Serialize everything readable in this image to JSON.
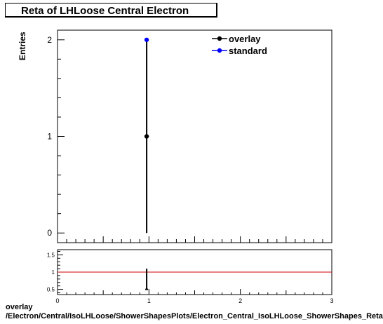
{
  "chart_data": [
    {
      "type": "scatter",
      "title": "Reta of LHLoose Central  Electron",
      "ylabel": "Entries",
      "xlim": [
        0,
        3
      ],
      "ylim": [
        -0.1,
        2.1
      ],
      "x_ticks": [
        "0",
        "1",
        "2",
        "3"
      ],
      "y_ticks": [
        "0",
        "1",
        "2"
      ],
      "legend": "top-right",
      "series": [
        {
          "name": "overlay",
          "color": "#000000",
          "points": [
            {
              "x": 0.975,
              "y": 1,
              "yerr": 1
            }
          ]
        },
        {
          "name": "standard",
          "color": "#0000ff",
          "points": [
            {
              "x": 0.975,
              "y": 2
            }
          ]
        }
      ]
    },
    {
      "type": "line",
      "xlim": [
        0,
        3
      ],
      "ylim": [
        0.35,
        1.65
      ],
      "x_ticks": [
        "0",
        "1",
        "2",
        "3"
      ],
      "y_ticks": [
        "0.5",
        "1",
        "1.5"
      ],
      "reference_line": {
        "y": 1,
        "color": "#cc0000"
      },
      "series": [
        {
          "color": "#000000",
          "points": [
            {
              "x": 0.975,
              "y": 0.5,
              "ylow": 0.5,
              "yhigh": 1.1
            }
          ]
        }
      ]
    }
  ],
  "footer": {
    "line1": "overlay",
    "line2": "/Electron/Central/IsoLHLoose/ShowerShapesPlots/Electron_Central_IsoLHLoose_ShowerShapes_Reta"
  }
}
